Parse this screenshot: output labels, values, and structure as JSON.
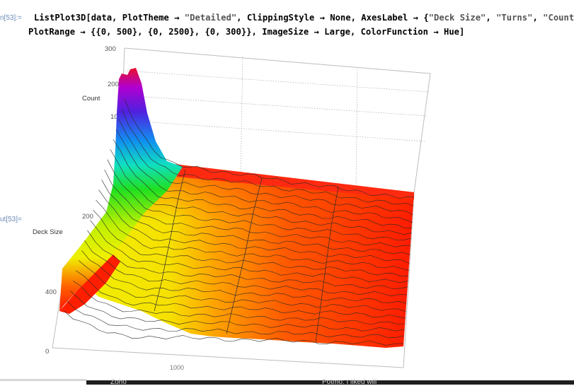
{
  "cell": {
    "in_label": "n[53]:=",
    "out_label": "ut[53]=",
    "code": {
      "fn": "ListPlot3D[data, PlotTheme → ",
      "theme": "\"Detailed\"",
      "mid1": ", ClippingStyle → None, AxesLabel → {",
      "lbl1": "\"Deck Size\"",
      "sep1": ", ",
      "lbl2": "\"Turns\"",
      "sep2": ", ",
      "lbl3": "\"Count\"",
      "end1": "},",
      "line2": "PlotRange → {{0, 500}, {0, 2500}, {0, 300}}, ImageSize → Large, ColorFunction → Hue]"
    }
  },
  "plot": {
    "count_label": "Count",
    "deck_label": "Deck Size",
    "z_ticks": [
      "300",
      "200",
      "10"
    ],
    "deck_ticks": [
      "200",
      "400",
      "0"
    ],
    "turns_tick": "1000"
  },
  "taskbar": {
    "item1": "Zoho",
    "item2": "Potmo: I liked will"
  }
}
